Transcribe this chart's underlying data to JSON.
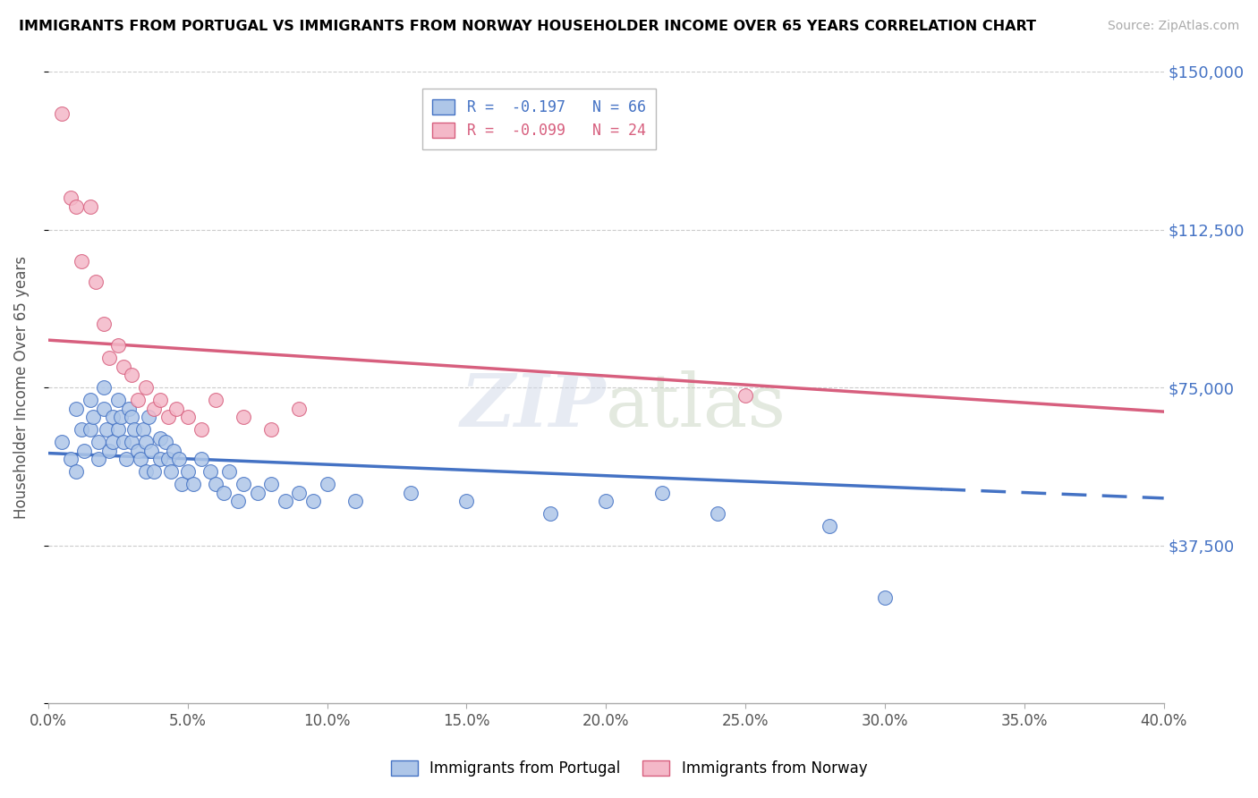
{
  "title": "IMMIGRANTS FROM PORTUGAL VS IMMIGRANTS FROM NORWAY HOUSEHOLDER INCOME OVER 65 YEARS CORRELATION CHART",
  "source": "Source: ZipAtlas.com",
  "ylabel": "Householder Income Over 65 years",
  "xlim": [
    0.0,
    0.4
  ],
  "ylim": [
    0,
    150000
  ],
  "yticks": [
    0,
    37500,
    75000,
    112500,
    150000
  ],
  "ytick_labels": [
    "",
    "$37,500",
    "$75,000",
    "$112,500",
    "$150,000"
  ],
  "xtick_labels": [
    "0.0%",
    "5.0%",
    "10.0%",
    "15.0%",
    "20.0%",
    "25.0%",
    "30.0%",
    "35.0%",
    "40.0%"
  ],
  "xticks": [
    0.0,
    0.05,
    0.1,
    0.15,
    0.2,
    0.25,
    0.3,
    0.35,
    0.4
  ],
  "portugal_color": "#aec6e8",
  "norway_color": "#f4b8c8",
  "portugal_line_color": "#4472c4",
  "norway_line_color": "#d75f7e",
  "portugal_R": -0.197,
  "portugal_N": 66,
  "norway_R": -0.099,
  "norway_N": 24,
  "legend_R_portugal": "R =  -0.197   N = 66",
  "legend_R_norway": "R =  -0.099   N = 24",
  "watermark": "ZIPatlas",
  "portugal_scatter_x": [
    0.005,
    0.008,
    0.01,
    0.01,
    0.012,
    0.013,
    0.015,
    0.015,
    0.016,
    0.018,
    0.018,
    0.02,
    0.02,
    0.021,
    0.022,
    0.023,
    0.023,
    0.025,
    0.025,
    0.026,
    0.027,
    0.028,
    0.029,
    0.03,
    0.03,
    0.031,
    0.032,
    0.033,
    0.034,
    0.035,
    0.035,
    0.036,
    0.037,
    0.038,
    0.04,
    0.04,
    0.042,
    0.043,
    0.044,
    0.045,
    0.047,
    0.048,
    0.05,
    0.052,
    0.055,
    0.058,
    0.06,
    0.063,
    0.065,
    0.068,
    0.07,
    0.075,
    0.08,
    0.085,
    0.09,
    0.095,
    0.1,
    0.11,
    0.13,
    0.15,
    0.18,
    0.2,
    0.22,
    0.24,
    0.28,
    0.3
  ],
  "portugal_scatter_y": [
    62000,
    58000,
    70000,
    55000,
    65000,
    60000,
    72000,
    65000,
    68000,
    62000,
    58000,
    75000,
    70000,
    65000,
    60000,
    68000,
    62000,
    72000,
    65000,
    68000,
    62000,
    58000,
    70000,
    68000,
    62000,
    65000,
    60000,
    58000,
    65000,
    62000,
    55000,
    68000,
    60000,
    55000,
    63000,
    58000,
    62000,
    58000,
    55000,
    60000,
    58000,
    52000,
    55000,
    52000,
    58000,
    55000,
    52000,
    50000,
    55000,
    48000,
    52000,
    50000,
    52000,
    48000,
    50000,
    48000,
    52000,
    48000,
    50000,
    48000,
    45000,
    48000,
    50000,
    45000,
    42000,
    25000
  ],
  "norway_scatter_x": [
    0.005,
    0.008,
    0.01,
    0.012,
    0.015,
    0.017,
    0.02,
    0.022,
    0.025,
    0.027,
    0.03,
    0.032,
    0.035,
    0.038,
    0.04,
    0.043,
    0.046,
    0.05,
    0.055,
    0.06,
    0.07,
    0.08,
    0.09,
    0.25
  ],
  "norway_scatter_y": [
    140000,
    120000,
    118000,
    105000,
    118000,
    100000,
    90000,
    82000,
    85000,
    80000,
    78000,
    72000,
    75000,
    70000,
    72000,
    68000,
    70000,
    68000,
    65000,
    72000,
    68000,
    65000,
    70000,
    73000
  ]
}
